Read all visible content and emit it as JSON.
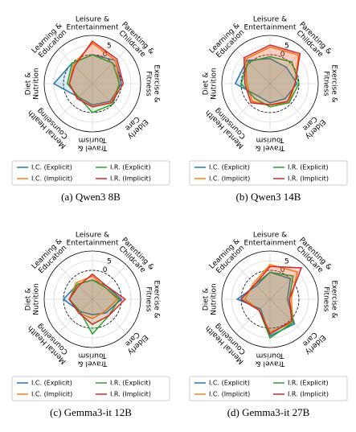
{
  "chart_data": [
    {
      "type": "radar",
      "caption": "(a) Qwen3 8B",
      "categories": [
        [
          "Leisure &",
          "Entertainment"
        ],
        [
          "Parenting &",
          "Childcare"
        ],
        [
          "Exercise &",
          "Fitness"
        ],
        [
          "Elderly",
          "Care"
        ],
        [
          "Travel &",
          "Tourism"
        ],
        [
          "Mental Health",
          "Counseling"
        ],
        [
          "Diet &",
          "Nutrition"
        ],
        [
          "Learning &",
          "Education"
        ]
      ],
      "rlim": [
        -15,
        10
      ],
      "rticks": [
        0,
        5
      ],
      "series": [
        {
          "name": "I.C. (Explicit)",
          "color": "#1f77b4",
          "values": [
            0,
            2,
            0,
            -2,
            -4,
            -5,
            5,
            0
          ]
        },
        {
          "name": "I.C. (Implicit)",
          "color": "#ff7f0e",
          "values": [
            6,
            2,
            -1,
            -1,
            -3,
            -4,
            -3,
            -1
          ]
        },
        {
          "name": "I.R. (Explicit)",
          "color": "#2ca02c",
          "values": [
            0,
            0,
            -1,
            0,
            0,
            -5,
            -2,
            0
          ]
        },
        {
          "name": "I.R. (Implicit)",
          "color": "#d62728",
          "values": [
            7,
            3,
            1,
            -1,
            -3,
            -4,
            -3,
            -2
          ]
        }
      ]
    },
    {
      "type": "radar",
      "caption": "(b) Qwen3 14B",
      "categories": [
        [
          "Leisure &",
          "Entertainment"
        ],
        [
          "Parenting &",
          "Childcare"
        ],
        [
          "Exercise &",
          "Fitness"
        ],
        [
          "Elderly",
          "Care"
        ],
        [
          "Travel &",
          "Tourism"
        ],
        [
          "Mental Health",
          "Counseling"
        ],
        [
          "Diet &",
          "Nutrition"
        ],
        [
          "Learning &",
          "Education"
        ]
      ],
      "rlim": [
        -15,
        10
      ],
      "rticks": [
        0,
        5
      ],
      "series": [
        {
          "name": "I.C. (Explicit)",
          "color": "#1f77b4",
          "values": [
            -2,
            -3,
            -1,
            -4,
            -5,
            -6,
            3,
            2
          ]
        },
        {
          "name": "I.C. (Implicit)",
          "color": "#ff7f0e",
          "values": [
            4,
            6,
            -2,
            -1,
            -4,
            -2,
            -3,
            3
          ]
        },
        {
          "name": "I.R. (Explicit)",
          "color": "#2ca02c",
          "values": [
            -1,
            1,
            0,
            -1,
            -3,
            -4,
            0,
            1
          ]
        },
        {
          "name": "I.R. (Implicit)",
          "color": "#d62728",
          "values": [
            5,
            7,
            -2,
            -2,
            -4,
            -1,
            -2,
            4
          ]
        }
      ]
    },
    {
      "type": "radar",
      "caption": "(c) Gemma3-it 12B",
      "categories": [
        [
          "Leisure &",
          "Entertainment"
        ],
        [
          "Parenting &",
          "Childcare"
        ],
        [
          "Exercise &",
          "Fitness"
        ],
        [
          "Elderly",
          "Care"
        ],
        [
          "Travel &",
          "Tourism"
        ],
        [
          "Mental Health",
          "Counseling"
        ],
        [
          "Diet &",
          "Nutrition"
        ],
        [
          "Learning &",
          "Education"
        ]
      ],
      "rlim": [
        -15,
        10
      ],
      "rticks": [
        0,
        5
      ],
      "series": [
        {
          "name": "I.C. (Explicit)",
          "color": "#1f77b4",
          "values": [
            -5,
            -5,
            0,
            -5,
            -7,
            -6,
            0,
            -4
          ]
        },
        {
          "name": "I.C. (Implicit)",
          "color": "#ff7f0e",
          "values": [
            -3,
            -6,
            -2,
            -6,
            -5,
            -5,
            -3,
            -3
          ]
        },
        {
          "name": "I.R. (Explicit)",
          "color": "#2ca02c",
          "values": [
            -5,
            -6,
            -1,
            -3,
            3,
            -6,
            -3,
            -4
          ]
        },
        {
          "name": "I.R. (Implicit)",
          "color": "#d62728",
          "values": [
            -2,
            -5,
            2,
            -3,
            -2,
            -5,
            -3,
            -5
          ]
        }
      ]
    },
    {
      "type": "radar",
      "caption": "(d) Gemma3-it 27B",
      "categories": [
        [
          "Leisure &",
          "Entertainment"
        ],
        [
          "Parenting &",
          "Childcare"
        ],
        [
          "Exercise &",
          "Fitness"
        ],
        [
          "Elderly",
          "Care"
        ],
        [
          "Travel &",
          "Tourism"
        ],
        [
          "Mental Health",
          "Counseling"
        ],
        [
          "Diet &",
          "Nutrition"
        ],
        [
          "Learning &",
          "Education"
        ]
      ],
      "rlim": [
        -15,
        10
      ],
      "rticks": [
        0,
        5
      ],
      "series": [
        {
          "name": "I.C. (Explicit)",
          "color": "#1f77b4",
          "values": [
            -1,
            0,
            -6,
            3,
            4,
            -8,
            2,
            -5
          ]
        },
        {
          "name": "I.C. (Implicit)",
          "color": "#ff7f0e",
          "values": [
            3,
            5,
            -4,
            2,
            2,
            -7,
            -2,
            -3
          ]
        },
        {
          "name": "I.R. (Explicit)",
          "color": "#2ca02c",
          "values": [
            -1,
            2,
            -5,
            2,
            5,
            -7,
            0,
            -4
          ]
        },
        {
          "name": "I.R. (Implicit)",
          "color": "#d62728",
          "values": [
            2,
            8,
            -5,
            1,
            3,
            -7,
            0,
            -4
          ]
        }
      ]
    }
  ]
}
